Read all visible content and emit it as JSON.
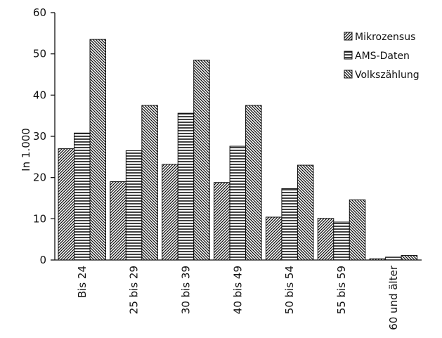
{
  "chart_data": {
    "type": "bar",
    "title": "",
    "xlabel": "",
    "ylabel": "In 1.000",
    "ylim": [
      0,
      60
    ],
    "yticks": [
      0,
      10,
      20,
      30,
      40,
      50,
      60
    ],
    "grid": false,
    "legend_position": "top-right",
    "categories": [
      "Bis 24",
      "25 bis 29",
      "30 bis 39",
      "40 bis 49",
      "50 bis 54",
      "55 bis 59",
      "60 und älter"
    ],
    "series": [
      {
        "name": "Mikrozensus",
        "pattern": "diagonal-right",
        "values": [
          27,
          19,
          23.2,
          18.8,
          10.4,
          10.1,
          0.3
        ]
      },
      {
        "name": "AMS-Daten",
        "pattern": "horizontal",
        "values": [
          30.8,
          26.5,
          35.6,
          27.6,
          17.3,
          9.2,
          0.7
        ]
      },
      {
        "name": "Volkszählung",
        "pattern": "diagonal-left",
        "values": [
          53.5,
          37.5,
          48.5,
          37.5,
          23,
          14.6,
          1.1
        ]
      }
    ]
  }
}
